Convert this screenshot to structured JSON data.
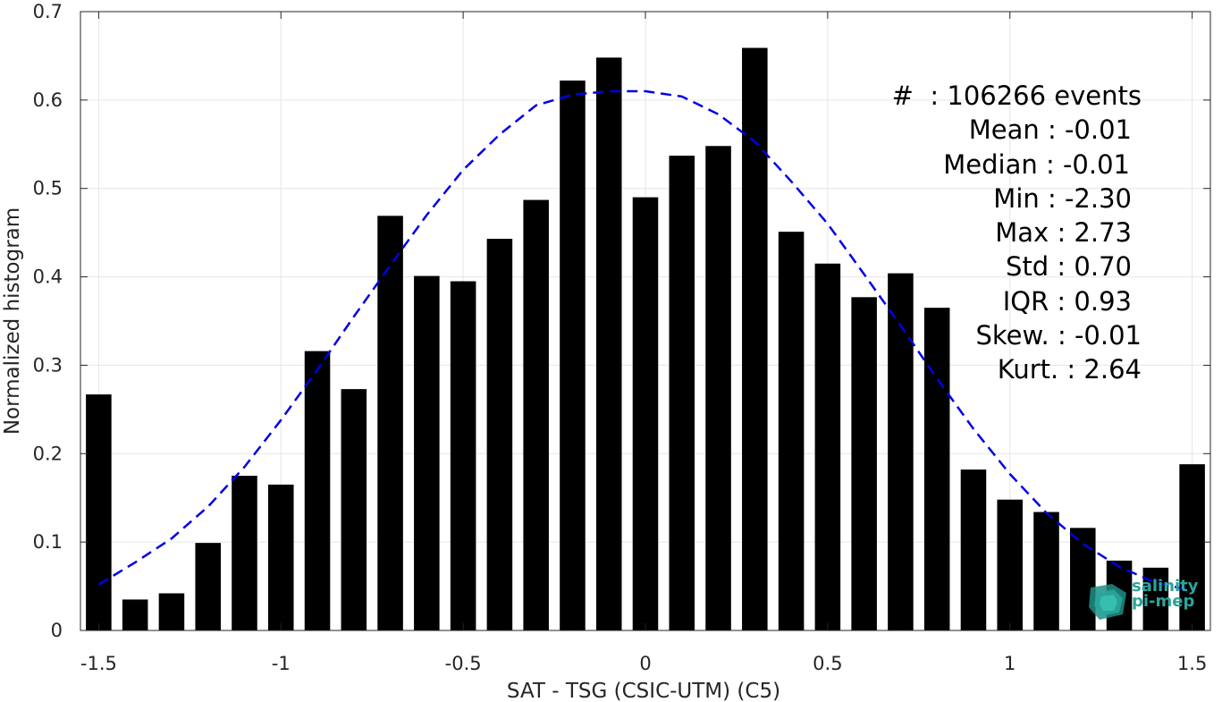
{
  "chart_data": {
    "type": "bar",
    "xlabel": "SAT - TSG (CSIC-UTM) (C5)",
    "ylabel": "Normalized histogram",
    "xlim": [
      -1.55,
      1.55
    ],
    "ylim": [
      0,
      0.7
    ],
    "xticks": [
      -1.5,
      -1,
      -0.5,
      0,
      0.5,
      1,
      1.5
    ],
    "xtick_labels": [
      "-1.5",
      "-1",
      "-0.5",
      "0",
      "0.5",
      "1",
      "1.5"
    ],
    "yticks": [
      0,
      0.1,
      0.2,
      0.3,
      0.4,
      0.5,
      0.6,
      0.7
    ],
    "ytick_labels": [
      "0",
      "0.1",
      "0.2",
      "0.3",
      "0.4",
      "0.5",
      "0.6",
      "0.7"
    ],
    "grid": true,
    "bin_centers": [
      -1.5,
      -1.4,
      -1.3,
      -1.2,
      -1.1,
      -1.0,
      -0.9,
      -0.8,
      -0.7,
      -0.6,
      -0.5,
      -0.4,
      -0.3,
      -0.2,
      -0.1,
      0.0,
      0.1,
      0.2,
      0.3,
      0.4,
      0.5,
      0.6,
      0.7,
      0.8,
      0.9,
      1.0,
      1.1,
      1.2,
      1.3,
      1.4,
      1.5
    ],
    "values": [
      0.267,
      0.035,
      0.042,
      0.099,
      0.175,
      0.165,
      0.316,
      0.273,
      0.469,
      0.401,
      0.395,
      0.443,
      0.487,
      0.622,
      0.648,
      0.49,
      0.537,
      0.548,
      0.659,
      0.451,
      0.415,
      0.377,
      0.404,
      0.365,
      0.182,
      0.148,
      0.134,
      0.116,
      0.079,
      0.071,
      0.188
    ],
    "bar_color": "#000000",
    "fit_curve": {
      "style": "dashed",
      "color": "#0000e6",
      "x": [
        -1.5,
        -1.4,
        -1.3,
        -1.2,
        -1.1,
        -1.0,
        -0.9,
        -0.8,
        -0.7,
        -0.6,
        -0.5,
        -0.4,
        -0.3,
        -0.2,
        -0.1,
        0.0,
        0.1,
        0.2,
        0.3,
        0.4,
        0.5,
        0.6,
        0.7,
        0.8,
        0.9,
        1.0,
        1.1,
        1.2,
        1.3,
        1.4,
        1.5
      ],
      "y": [
        0.052,
        0.077,
        0.104,
        0.14,
        0.185,
        0.238,
        0.295,
        0.355,
        0.413,
        0.47,
        0.521,
        0.561,
        0.594,
        0.606,
        0.61,
        0.61,
        0.604,
        0.584,
        0.553,
        0.508,
        0.46,
        0.403,
        0.345,
        0.285,
        0.228,
        0.177,
        0.133,
        0.098,
        0.072,
        0.054,
        0.045
      ]
    }
  },
  "stats": [
    "#  : 106266 events",
    "Mean : -0.01",
    "Median : -0.01",
    "Min : -2.30",
    "Max : 2.73",
    "Std : 0.70",
    "IQR : 0.93",
    "Skew. : -0.01",
    "Kurt. : 2.64"
  ],
  "logo": {
    "line1": "salinity",
    "line2": "pi-mep",
    "color": "#2aa59a"
  }
}
